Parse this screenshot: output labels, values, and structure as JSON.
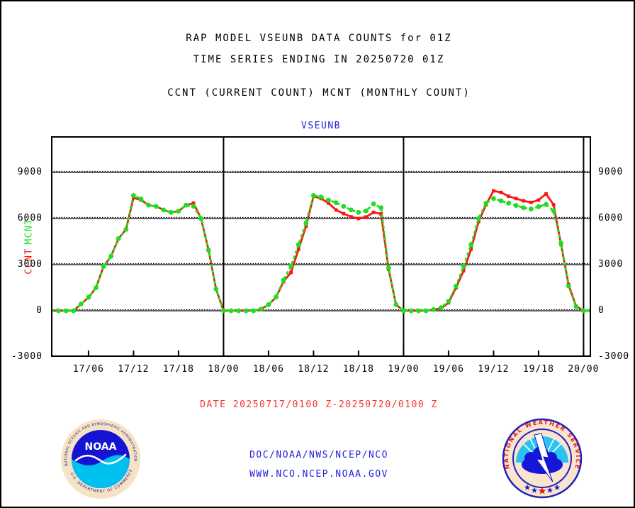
{
  "page": {
    "title_line1": "RAP MODEL VSEUNB DATA COUNTS for 01Z",
    "title_line2": "TIME SERIES ENDING IN 20250720 01Z",
    "subtitle": "CCNT (CURRENT COUNT) MCNT (MONTHLY COUNT)",
    "date_range": "DATE 20250717/0100 Z-20250720/0100 Z",
    "footer_line1": "DOC/NOAA/NWS/NCEP/NCO",
    "footer_line2": "WWW.NCO.NCEP.NOAA.GOV"
  },
  "colors": {
    "ccnt": "#f91616",
    "mcnt": "#1fdd1f",
    "blue_text": "#2222dd",
    "red_text": "#f93333",
    "grid": "#000000"
  },
  "logos": {
    "noaa": {
      "top_text": "NATIONAL OCEANIC AND ATMOSPHERIC ADMINISTRATION",
      "bottom_text": "U.S. DEPARTMENT OF COMMERCE",
      "center_text": "NOAA"
    },
    "nws": {
      "ring_text": "NATIONAL WEATHER SERVICE"
    }
  },
  "chart_data": {
    "type": "line",
    "title": "VSEUNB",
    "left_axis_label_top": "MCNT",
    "left_axis_label_bottom": "CCNT",
    "x_description": "hourly values from 2025-07-17 01Z to 2025-07-20 01Z (73 points)",
    "x_hours_span": 72,
    "x_tick_hours": [
      5,
      11,
      17,
      23,
      29,
      35,
      41,
      47,
      53,
      59,
      65,
      71
    ],
    "x_tick_labels": [
      "17/06",
      "17/12",
      "17/18",
      "18/00",
      "18/06",
      "18/12",
      "18/18",
      "19/00",
      "19/06",
      "19/12",
      "19/18",
      "20/00"
    ],
    "day_boundary_hours": [
      23,
      47,
      71
    ],
    "y_ticks": [
      9000,
      6000,
      3000,
      0,
      -3000
    ],
    "ylim": [
      -3000,
      11354
    ],
    "grid": true,
    "legend_position": "none",
    "series": [
      {
        "name": "CCNT",
        "color_key": "ccnt",
        "style": "solid-square-markers",
        "values": [
          0,
          0,
          0,
          0,
          430,
          870,
          1500,
          2880,
          3550,
          4700,
          5300,
          7350,
          7200,
          6870,
          6790,
          6560,
          6400,
          6480,
          6870,
          7000,
          6000,
          3950,
          1420,
          0,
          0,
          0,
          0,
          0,
          100,
          400,
          870,
          1900,
          2500,
          4000,
          5500,
          7450,
          7300,
          7000,
          6560,
          6320,
          6110,
          6000,
          6100,
          6400,
          6300,
          2700,
          400,
          0,
          0,
          0,
          0,
          80,
          150,
          520,
          1500,
          2600,
          4000,
          5800,
          6900,
          7800,
          7700,
          7450,
          7300,
          7150,
          7050,
          7200,
          7600,
          6900,
          4300,
          1700,
          300,
          0,
          0
        ]
      },
      {
        "name": "MCNT",
        "color_key": "mcnt",
        "style": "dashed-round-markers",
        "values": [
          0,
          0,
          0,
          0,
          440,
          870,
          1500,
          2880,
          3550,
          4700,
          5290,
          7500,
          7270,
          6870,
          6790,
          6560,
          6400,
          6480,
          6870,
          6800,
          6000,
          3950,
          1420,
          0,
          0,
          0,
          0,
          0,
          100,
          400,
          900,
          2000,
          2900,
          4300,
          5700,
          7500,
          7400,
          7200,
          7030,
          6790,
          6560,
          6400,
          6500,
          6950,
          6700,
          2800,
          400,
          0,
          0,
          0,
          0,
          80,
          200,
          620,
          1600,
          2900,
          4300,
          6000,
          7000,
          7300,
          7150,
          7000,
          6850,
          6700,
          6620,
          6770,
          6920,
          6500,
          4400,
          1600,
          280,
          0,
          0
        ]
      }
    ]
  }
}
